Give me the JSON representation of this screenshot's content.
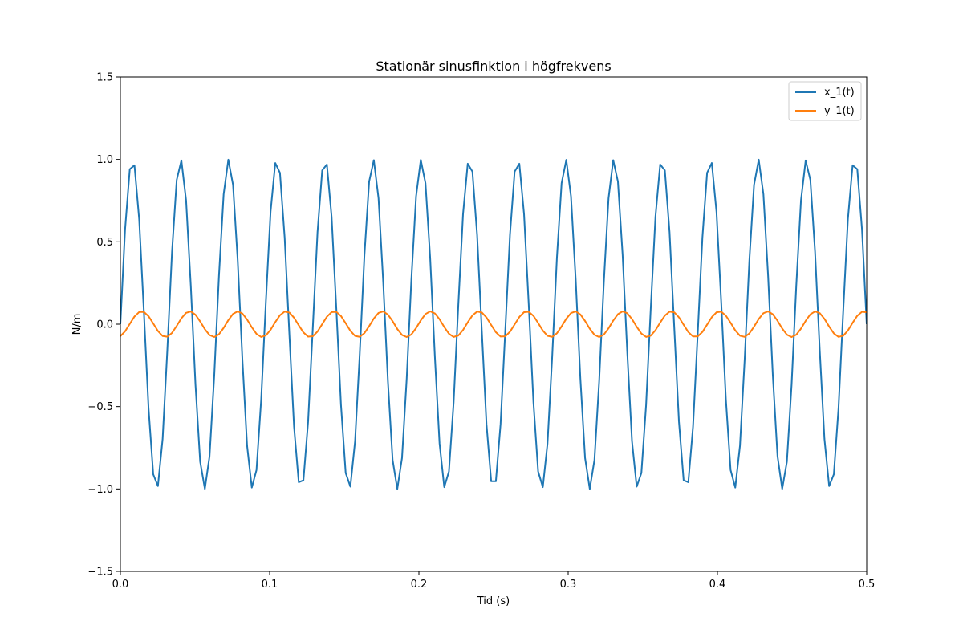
{
  "chart_data": {
    "type": "line",
    "title": "Stationär sinusfinktion i högfrekvens",
    "xlabel": "Tid (s)",
    "ylabel": "N/m",
    "xlim": [
      0.0,
      0.5
    ],
    "ylim": [
      -1.5,
      1.5
    ],
    "xticks": [
      0.0,
      0.1,
      0.2,
      0.3,
      0.4,
      0.5
    ],
    "xtick_labels": [
      "0.0",
      "0.1",
      "0.2",
      "0.3",
      "0.4",
      "0.5"
    ],
    "yticks": [
      -1.5,
      -1.0,
      -0.5,
      0.0,
      0.5,
      1.0,
      1.5
    ],
    "ytick_labels": [
      "−1.5",
      "−1.0",
      "−0.5",
      "0.0",
      "0.5",
      "1.0",
      "1.5"
    ],
    "grid": false,
    "legend_position": "top-right",
    "x": {
      "start": 0.0,
      "end": 0.5,
      "points": 160
    },
    "series": [
      {
        "name": "x_1(t)",
        "color": "#1f77b4",
        "function": "sine",
        "amplitude": 1.0,
        "frequency_hz": 31.0,
        "phase_rad": 0.0
      },
      {
        "name": "y_1(t)",
        "color": "#ff7f0e",
        "function": "sine",
        "amplitude": 0.078,
        "frequency_hz": 31.0,
        "phase_rad": -1.2
      }
    ]
  }
}
